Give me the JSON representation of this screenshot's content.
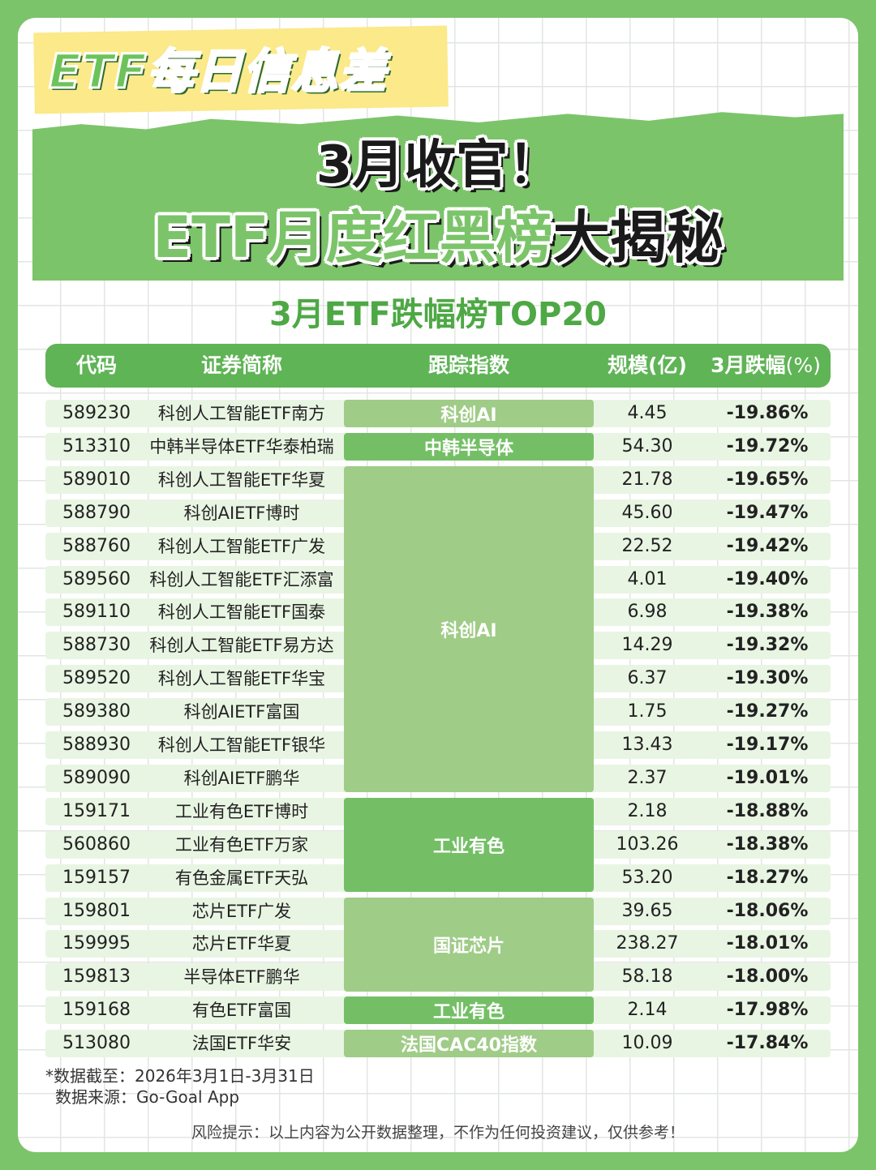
{
  "badge": "ETF每日信息差",
  "title_line1": "3月收官！",
  "title_line2_green": "ETF月度红黑榜",
  "title_line2_black": "大揭秘",
  "subtitle": "3月ETF跌幅榜TOP20",
  "table": {
    "headers": {
      "code": "代码",
      "name": "证券简称",
      "index": "跟踪指数",
      "scale": "规模(亿)",
      "change": "3月跌幅",
      "change_unit": "(%)"
    },
    "rows": [
      {
        "code": "589230",
        "name": "科创人工智能ETF南方",
        "scale": "4.45",
        "change": "-19.86%"
      },
      {
        "code": "513310",
        "name": "中韩半导体ETF华泰柏瑞",
        "scale": "54.30",
        "change": "-19.72%"
      },
      {
        "code": "589010",
        "name": "科创人工智能ETF华夏",
        "scale": "21.78",
        "change": "-19.65%"
      },
      {
        "code": "588790",
        "name": "科创AIETF博时",
        "scale": "45.60",
        "change": "-19.47%"
      },
      {
        "code": "588760",
        "name": "科创人工智能ETF广发",
        "scale": "22.52",
        "change": "-19.42%"
      },
      {
        "code": "589560",
        "name": "科创人工智能ETF汇添富",
        "scale": "4.01",
        "change": "-19.40%"
      },
      {
        "code": "589110",
        "name": "科创人工智能ETF国泰",
        "scale": "6.98",
        "change": "-19.38%"
      },
      {
        "code": "588730",
        "name": "科创人工智能ETF易方达",
        "scale": "14.29",
        "change": "-19.32%"
      },
      {
        "code": "589520",
        "name": "科创人工智能ETF华宝",
        "scale": "6.37",
        "change": "-19.30%"
      },
      {
        "code": "589380",
        "name": "科创AIETF富国",
        "scale": "1.75",
        "change": "-19.27%"
      },
      {
        "code": "588930",
        "name": "科创人工智能ETF银华",
        "scale": "13.43",
        "change": "-19.17%"
      },
      {
        "code": "589090",
        "name": "科创AIETF鹏华",
        "scale": "2.37",
        "change": "-19.01%"
      },
      {
        "code": "159171",
        "name": "工业有色ETF博时",
        "scale": "2.18",
        "change": "-18.88%"
      },
      {
        "code": "560860",
        "name": "工业有色ETF万家",
        "scale": "103.26",
        "change": "-18.38%"
      },
      {
        "code": "159157",
        "name": "有色金属ETF天弘",
        "scale": "53.20",
        "change": "-18.27%"
      },
      {
        "code": "159801",
        "name": "芯片ETF广发",
        "scale": "39.65",
        "change": "-18.06%"
      },
      {
        "code": "159995",
        "name": "芯片ETF华夏",
        "scale": "238.27",
        "change": "-18.01%"
      },
      {
        "code": "159813",
        "name": "半导体ETF鹏华",
        "scale": "58.18",
        "change": "-18.00%"
      },
      {
        "code": "159168",
        "name": "有色ETF富国",
        "scale": "2.14",
        "change": "-17.98%"
      },
      {
        "code": "513080",
        "name": "法国ETF华安",
        "scale": "10.09",
        "change": "-17.84%"
      }
    ],
    "index_groups": [
      {
        "label": "科创AI",
        "start": 0,
        "span": 1,
        "color": "#9fcc87"
      },
      {
        "label": "中韩半导体",
        "start": 1,
        "span": 1,
        "color": "#74bf66"
      },
      {
        "label": "科创AI",
        "start": 2,
        "span": 10,
        "color": "#9fcc87"
      },
      {
        "label": "工业有色",
        "start": 12,
        "span": 3,
        "color": "#74bf66"
      },
      {
        "label": "国证芯片",
        "start": 15,
        "span": 3,
        "color": "#9fcc87"
      },
      {
        "label": "工业有色",
        "start": 18,
        "span": 1,
        "color": "#74bf66"
      },
      {
        "label": "法国CAC40指数",
        "start": 19,
        "span": 1,
        "color": "#9fcc87"
      }
    ]
  },
  "note_date": "*数据截至：2026年3月1日-3月31日",
  "note_source": "数据来源：Go-Goal App",
  "risk_notice": "风险提示：以上内容为公开数据整理，不作为任何投资建议，仅供参考！"
}
